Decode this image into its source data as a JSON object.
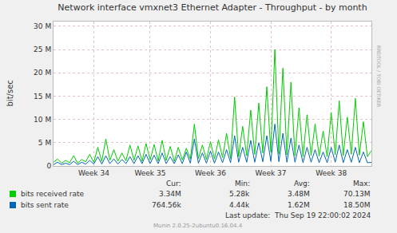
{
  "chart_data": {
    "type": "line",
    "title": "Network interface vmxnet3 Ethernet Adapter - Throughput - by month",
    "ylabel": "bit/sec",
    "categories": [
      null,
      null,
      null,
      null,
      null,
      null,
      null,
      null,
      null,
      null,
      "Week 34",
      null,
      null,
      null,
      null,
      null,
      null,
      null,
      null,
      null,
      null,
      null,
      null,
      null,
      "Week 35",
      null,
      null,
      null,
      null,
      null,
      null,
      null,
      null,
      null,
      null,
      null,
      null,
      null,
      null,
      "Week 36",
      null,
      null,
      null,
      null,
      null,
      null,
      null,
      null,
      null,
      null,
      null,
      null,
      null,
      null,
      "Week 37",
      null,
      null,
      null,
      null,
      null,
      null,
      null,
      null,
      null,
      null,
      null,
      null,
      null,
      null,
      "Week 38",
      null,
      null,
      null,
      null,
      null,
      null,
      null,
      null,
      null,
      null
    ],
    "series": [
      {
        "name": "bits received rate",
        "color": "#00cc00",
        "values": [
          800000,
          1500000,
          600000,
          1200000,
          700000,
          2200000,
          600000,
          1400000,
          900000,
          2500000,
          800000,
          4000000,
          1000000,
          5800000,
          1200000,
          3500000,
          1000000,
          2800000,
          1100000,
          4500000,
          1200000,
          4300000,
          1000000,
          4800000,
          1300000,
          4600000,
          1100000,
          5500000,
          1200000,
          4200000,
          1000000,
          4000000,
          1300000,
          3800000,
          1500000,
          9000000,
          1600000,
          4500000,
          1400000,
          5200000,
          1500000,
          5600000,
          1800000,
          7000000,
          1600000,
          14800000,
          2000000,
          8500000,
          2200000,
          12000000,
          2500000,
          13500000,
          2800000,
          17000000,
          3000000,
          25000000,
          2600000,
          21000000,
          2400000,
          18000000,
          2200000,
          12500000,
          2000000,
          11000000,
          2300000,
          9000000,
          2100000,
          7500000,
          2000000,
          11500000,
          2400000,
          14000000,
          2200000,
          10500000,
          2500000,
          14500000,
          2300000,
          9500000,
          2000000,
          3340000
        ]
      },
      {
        "name": "bits sent rate",
        "color": "#0066b3",
        "values": [
          300000,
          800000,
          300000,
          600000,
          300000,
          1000000,
          300000,
          800000,
          400000,
          1200000,
          400000,
          2000000,
          400000,
          2200000,
          500000,
          1500000,
          400000,
          1400000,
          500000,
          2000000,
          500000,
          2200000,
          500000,
          2500000,
          500000,
          2300000,
          500000,
          2800000,
          500000,
          2000000,
          500000,
          2400000,
          500000,
          3000000,
          600000,
          5800000,
          600000,
          2800000,
          600000,
          3200000,
          600000,
          3000000,
          700000,
          3500000,
          700000,
          6500000,
          800000,
          4000000,
          800000,
          5500000,
          800000,
          5000000,
          900000,
          6500000,
          1000000,
          9000000,
          900000,
          7000000,
          800000,
          6000000,
          800000,
          4500000,
          700000,
          4000000,
          800000,
          3500000,
          700000,
          3000000,
          700000,
          4000000,
          800000,
          4500000,
          700000,
          3500000,
          800000,
          4000000,
          700000,
          3000000,
          700000,
          764560
        ]
      }
    ],
    "ylim": [
      0,
      31000000
    ],
    "yticks": [
      0,
      {
        "value": 5000000,
        "label": "5 M"
      },
      {
        "value": 10000000,
        "label": "10 M"
      },
      {
        "value": 15000000,
        "label": "15 M"
      },
      {
        "value": 20000000,
        "label": "20 M"
      },
      {
        "value": 25000000,
        "label": "25 M"
      },
      {
        "value": 30000000,
        "label": "30 M"
      }
    ],
    "grid": true,
    "legend_table": {
      "headers": [
        "Cur:",
        "Min:",
        "Avg:",
        "Max:"
      ],
      "rows": [
        [
          "3.34M",
          "5.28k",
          "3.48M",
          "70.13M"
        ],
        [
          "764.56k",
          "4.44k",
          "1.62M",
          "18.50M"
        ]
      ]
    },
    "last_update": "Last update:  Thu Sep 19 22:00:02 2024",
    "footer": "Munin 2.0.25-2ubuntu0.16.04.4",
    "side_text": "RRDTOOL / TOBI OETIKER"
  }
}
